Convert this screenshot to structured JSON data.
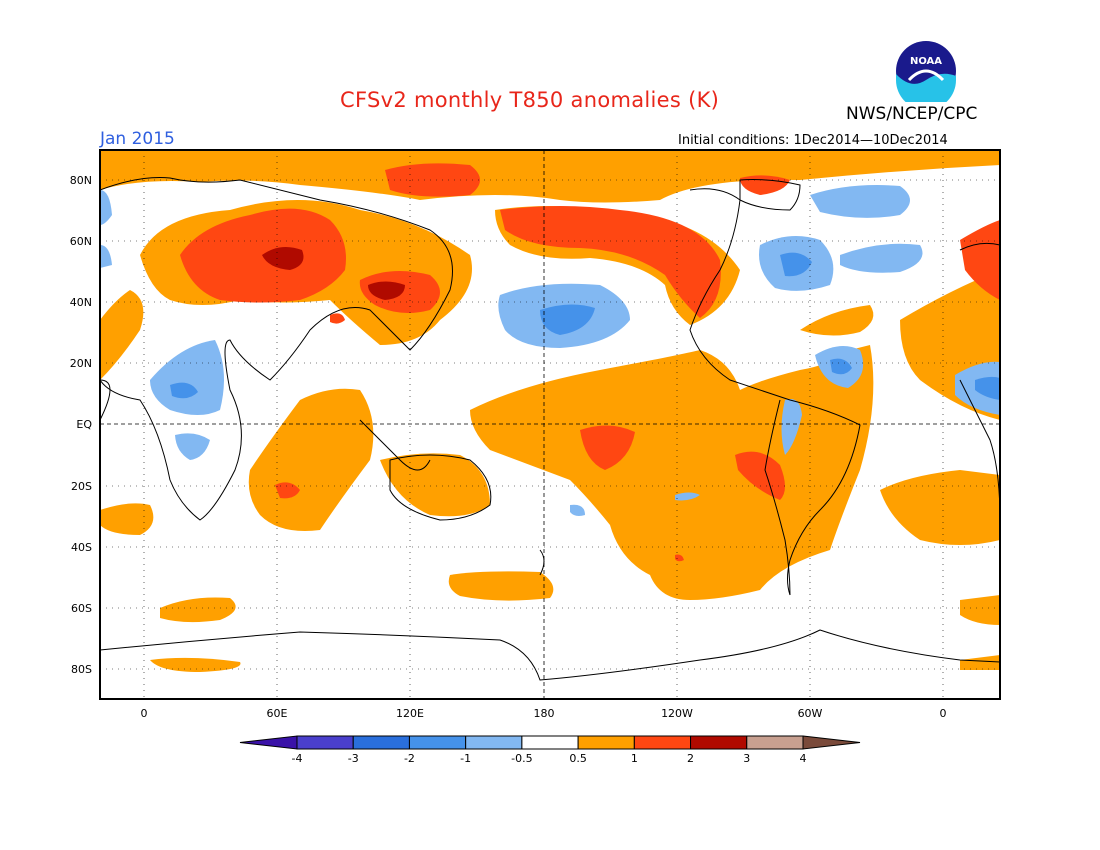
{
  "header": {
    "title": "CFSv2 monthly T850 anomalies (K)",
    "agency": "NWS/NCEP/CPC",
    "logo_text": "NOAA",
    "month": "Jan 2015",
    "initial_conditions": "Initial conditions: 1Dec2014—10Dec2014"
  },
  "map": {
    "lat_labels": [
      "80N",
      "60N",
      "40N",
      "20N",
      "EQ",
      "20S",
      "40S",
      "60S",
      "80S"
    ],
    "lon_labels": [
      "0",
      "60E",
      "120E",
      "180",
      "120W",
      "60W",
      "0"
    ]
  },
  "colorbar": {
    "labels": [
      "-4",
      "-3",
      "-2",
      "-1",
      "-0.5",
      "0.5",
      "1",
      "2",
      "3",
      "4"
    ],
    "colors": [
      "#3a12a8",
      "#4a3fcc",
      "#2a6fdc",
      "#4592ea",
      "#82b8f2",
      "#ffffff",
      "#ffa000",
      "#ff4712",
      "#b00a00",
      "#c8a090",
      "#7a4a3a"
    ]
  },
  "colors": {
    "warm1": "#ffa000",
    "warm2": "#ff4712",
    "warm3": "#b00a00",
    "cool1": "#82b8f2",
    "cool2": "#4592ea",
    "title": "#e8261a",
    "month": "#2f5fdf"
  }
}
